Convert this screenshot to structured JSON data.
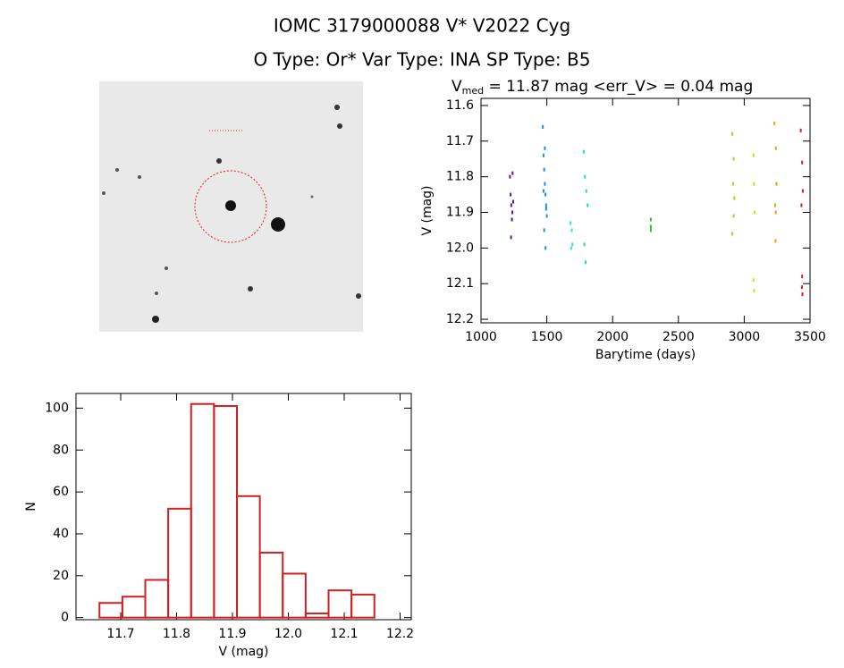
{
  "title": "IOMC 3179000088    V* V2022 Cyg",
  "subtitle": "O Type: Or*  Var Type: INA  SP Type: B5",
  "chart_data": [
    {
      "type": "scatter",
      "title": {
        "symbol": "V",
        "subscript": "med",
        "rest": " = 11.87 mag <err_V> = 0.04 mag"
      },
      "x_label": "Barytime (days)",
      "y_label": "V (mag)",
      "xlim": [
        1000,
        3500
      ],
      "xticks": [
        1000,
        1500,
        2000,
        2500,
        3000,
        3500
      ],
      "ylim": [
        12.21,
        11.58
      ],
      "yticks": [
        11.6,
        11.7,
        11.8,
        11.9,
        {
          "value": 12,
          "label": "12.0"
        },
        12.1,
        12.2
      ],
      "series": [
        {
          "color": "#5a1a8c",
          "x": [
            1220,
            1225,
            1230,
            1235,
            1240,
            1245,
            1228,
            1238
          ],
          "values": [
            11.8,
            11.85,
            11.88,
            11.92,
            11.79,
            11.87,
            11.97,
            11.9
          ]
        },
        {
          "color": "#1a8fe0",
          "x": [
            1470,
            1475,
            1480,
            1485,
            1490,
            1495,
            1500,
            1480,
            1490,
            1485,
            1475,
            1495
          ],
          "values": [
            11.66,
            11.74,
            11.78,
            11.82,
            11.85,
            11.88,
            11.91,
            11.95,
            12.0,
            11.72,
            11.84,
            11.89
          ]
        },
        {
          "color": "#30e0e0",
          "x": [
            1680,
            1690,
            1695,
            1685
          ],
          "values": [
            11.93,
            11.95,
            11.99,
            12.0
          ]
        },
        {
          "color": "#20e0a0",
          "x": [
            1780,
            1790,
            1800,
            1810,
            1785,
            1795
          ],
          "values": [
            11.73,
            11.8,
            11.84,
            11.88,
            11.99,
            12.04
          ]
        },
        {
          "color": "#30c030",
          "x": [
            2290,
            2290,
            2290
          ],
          "values": [
            11.92,
            11.94,
            11.95
          ]
        },
        {
          "color": "#90e020",
          "x": [
            2910,
            2920,
            2915,
            2925,
            2920,
            2910
          ],
          "values": [
            11.68,
            11.75,
            11.82,
            11.86,
            11.91,
            11.96
          ]
        },
        {
          "color": "#c8e020",
          "x": [
            3070,
            3075,
            3080,
            3070,
            3075
          ],
          "values": [
            11.74,
            11.82,
            11.9,
            12.09,
            12.12
          ]
        },
        {
          "color": "#f0a000",
          "x": [
            3230,
            3240,
            3245,
            3235,
            3240,
            3238
          ],
          "values": [
            11.65,
            11.72,
            11.82,
            11.88,
            11.9,
            11.98
          ]
        },
        {
          "color": "#d02020",
          "x": [
            3430,
            3440,
            3445,
            3435,
            3440,
            3438,
            3442
          ],
          "values": [
            11.67,
            11.76,
            11.84,
            11.88,
            12.08,
            12.11,
            12.13
          ]
        }
      ]
    },
    {
      "type": "histogram",
      "x_label": "V (mag)",
      "y_label": "N",
      "color": "#d02020",
      "bins": [
        11.662,
        11.703,
        11.744,
        11.785,
        11.826,
        11.867,
        11.908,
        11.949,
        11.99,
        12.031,
        12.072,
        12.113,
        12.154
      ],
      "values": [
        7,
        10,
        18,
        52,
        102,
        101,
        58,
        31,
        21,
        2,
        13,
        11
      ],
      "xlim": [
        11.62,
        12.22
      ],
      "xticks": [
        11.7,
        11.8,
        11.9,
        {
          "value": 12,
          "label": "12.0"
        },
        12.1,
        12.2
      ],
      "ylim": [
        -1,
        107
      ],
      "yticks": [
        0,
        20,
        40,
        60,
        80,
        100
      ]
    }
  ]
}
